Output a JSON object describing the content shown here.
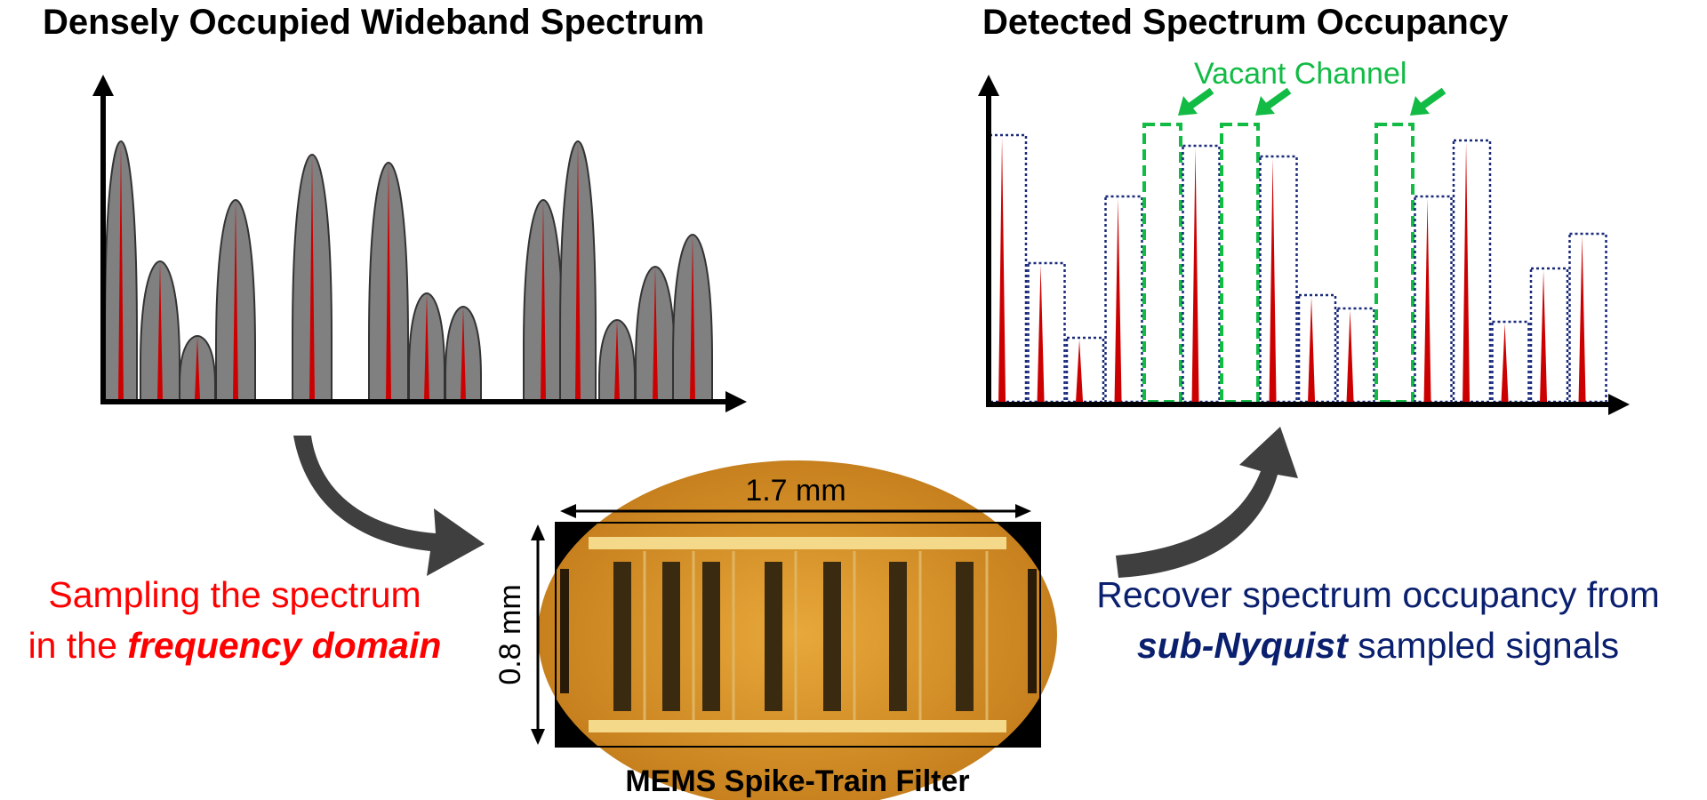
{
  "left_panel": {
    "title": "Densely Occupied Wideband Spectrum",
    "signals": [
      {
        "peak": 0.97
      },
      {
        "peak": 0.52
      },
      {
        "peak": 0.24
      },
      {
        "peak": 0.75
      },
      {
        "peak": 0.92
      },
      {
        "peak": 0.89
      },
      {
        "peak": 0.4
      },
      {
        "peak": 0.35
      },
      {
        "peak": 0.75
      },
      {
        "peak": 0.97
      },
      {
        "peak": 0.3
      },
      {
        "peak": 0.5
      },
      {
        "peak": 0.62
      }
    ]
  },
  "right_panel": {
    "title": "Detected Spectrum Occupancy",
    "vacant_label": "Vacant Channel",
    "channels": [
      {
        "state": "occupied",
        "level": 1.0
      },
      {
        "state": "occupied",
        "level": 0.52
      },
      {
        "state": "occupied",
        "level": 0.24
      },
      {
        "state": "occupied",
        "level": 0.77
      },
      {
        "state": "vacant"
      },
      {
        "state": "occupied",
        "level": 0.96
      },
      {
        "state": "vacant"
      },
      {
        "state": "occupied",
        "level": 0.92
      },
      {
        "state": "occupied",
        "level": 0.4
      },
      {
        "state": "occupied",
        "level": 0.35
      },
      {
        "state": "vacant"
      },
      {
        "state": "occupied",
        "level": 0.77
      },
      {
        "state": "occupied",
        "level": 0.98
      },
      {
        "state": "occupied",
        "level": 0.3
      },
      {
        "state": "occupied",
        "level": 0.5
      },
      {
        "state": "occupied",
        "level": 0.63
      }
    ]
  },
  "left_caption": {
    "line1": "Sampling the spectrum",
    "line2_prefix": "in the ",
    "line2_emphasis": "frequency domain"
  },
  "right_caption": {
    "line1": "Recover spectrum occupancy from",
    "line2_emphasis": "sub-Nyquist",
    "line2_suffix": " sampled signals"
  },
  "device": {
    "width_label": "1.7 mm",
    "height_label": "0.8 mm",
    "caption": "MEMS Spike-Train Filter"
  },
  "colors": {
    "signal_fill": "#808080",
    "spike": "#cc0000",
    "occupied_box": "#1a2a7a",
    "vacant": "#11bb44",
    "left_caption": "#ff0000",
    "right_caption": "#0a1f6e",
    "flow_arrow": "#3f3f3f"
  }
}
